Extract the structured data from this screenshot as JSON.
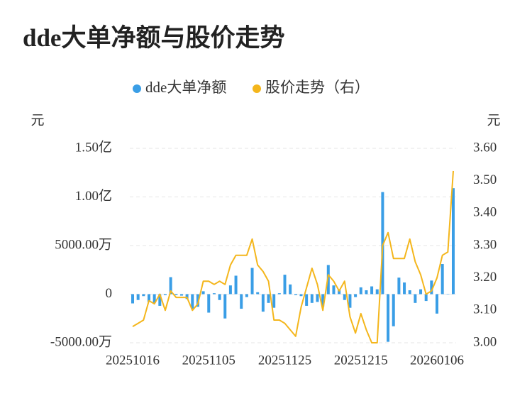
{
  "chart_data": {
    "type": "bar-line",
    "title": "dde大单净额与股价走势",
    "y_label": "元",
    "y2_label": "元",
    "categories": [
      "20251016",
      null,
      null,
      null,
      null,
      null,
      null,
      null,
      null,
      null,
      null,
      null,
      null,
      null,
      "20251105",
      null,
      null,
      null,
      null,
      null,
      null,
      null,
      null,
      null,
      null,
      null,
      null,
      null,
      "20251125",
      null,
      null,
      null,
      null,
      null,
      null,
      null,
      null,
      null,
      null,
      null,
      null,
      null,
      "20251215",
      null,
      null,
      null,
      null,
      null,
      null,
      null,
      null,
      null,
      null,
      null,
      null,
      null,
      "20260106",
      null,
      null,
      null
    ],
    "series": [
      {
        "name": "dde大单净额",
        "type": "bar",
        "color": "#3a9ee6",
        "values": [
          -950,
          -600,
          -200,
          -800,
          -900,
          -1200,
          -100,
          1750,
          -100,
          -150,
          -500,
          -1500,
          -1300,
          300,
          -1900,
          100,
          -600,
          -2500,
          900,
          1900,
          -1500,
          -300,
          2700,
          200,
          -1800,
          -900,
          -1400,
          100,
          2000,
          1000,
          -100,
          -200,
          -1200,
          -900,
          -800,
          -1300,
          3000,
          900,
          500,
          -600,
          -1400,
          -300,
          700,
          400,
          800,
          500,
          10500,
          -4900,
          -3300,
          1700,
          1200,
          400,
          -900,
          500,
          -700,
          1400,
          -2000,
          3100,
          0,
          10900
        ]
      },
      {
        "name": "股价走势（右）",
        "type": "line",
        "axis": "y2",
        "color": "#f4b61c",
        "values": [
          3.05,
          3.06,
          3.07,
          3.13,
          3.12,
          3.15,
          3.1,
          3.16,
          3.14,
          3.14,
          3.14,
          3.1,
          3.12,
          3.19,
          3.19,
          3.18,
          3.19,
          3.18,
          3.24,
          3.27,
          3.27,
          3.27,
          3.32,
          3.24,
          3.22,
          3.19,
          3.07,
          3.07,
          3.06,
          3.04,
          3.02,
          3.11,
          3.17,
          3.23,
          3.18,
          3.1,
          3.21,
          3.19,
          3.16,
          3.19,
          3.08,
          3.03,
          3.09,
          3.04,
          3.0,
          3.0,
          3.3,
          3.34,
          3.26,
          3.26,
          3.26,
          3.32,
          3.25,
          3.21,
          3.15,
          3.16,
          3.2,
          3.27,
          3.28,
          3.53
        ]
      }
    ],
    "ylim": [
      -5000,
      15000
    ],
    "yticks": [
      {
        "value": -5000,
        "label": "-5000.00万"
      },
      0,
      {
        "value": 5000,
        "label": "5000.00万"
      },
      {
        "value": 10000,
        "label": "1.00亿"
      },
      {
        "value": 15000,
        "label": "1.50亿"
      }
    ],
    "y2lim": [
      3.0,
      3.6
    ],
    "y2ticks": [
      {
        "value": 3.0,
        "label": "3.00"
      },
      {
        "value": 3.1,
        "label": "3.10"
      },
      {
        "value": 3.2,
        "label": "3.20"
      },
      {
        "value": 3.3,
        "label": "3.30"
      },
      {
        "value": 3.4,
        "label": "3.40"
      },
      {
        "value": 3.5,
        "label": "3.50"
      },
      {
        "value": 3.6,
        "label": "3.60"
      }
    ],
    "grid": true
  }
}
